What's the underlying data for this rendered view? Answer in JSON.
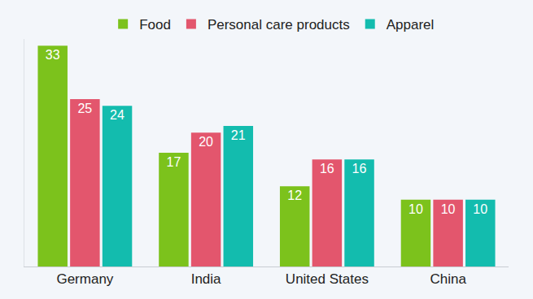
{
  "chart_data": {
    "type": "bar",
    "categories": [
      "Germany",
      "India",
      "United States",
      "China"
    ],
    "series": [
      {
        "name": "Food",
        "color": "#7cc21c",
        "values": [
          33,
          17,
          12,
          10
        ]
      },
      {
        "name": "Personal care products",
        "color": "#e3566d",
        "values": [
          25,
          20,
          16,
          10
        ]
      },
      {
        "name": "Apparel",
        "color": "#13bcae",
        "values": [
          24,
          21,
          16,
          10
        ]
      }
    ],
    "ylim": [
      0,
      34
    ],
    "grid": false,
    "legend": "top",
    "data_labels": true,
    "tick_labels": "x"
  }
}
